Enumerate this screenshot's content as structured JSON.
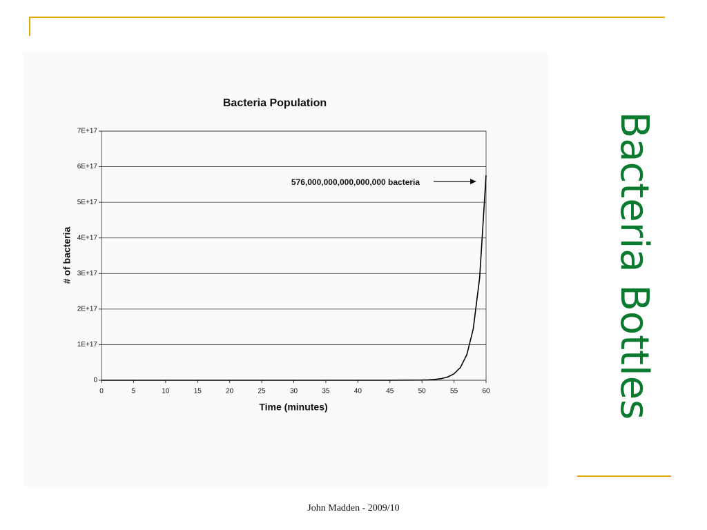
{
  "slide_title": "Bacteria Bottles",
  "footer": "John Madden - 2009/10",
  "chart_data": {
    "type": "line",
    "title": "Bacteria Population",
    "x_label": "Time (minutes)",
    "y_label": "# of bacteria",
    "annotation": "576,000,000,000,000,000 bacteria",
    "color": "#000000",
    "grid": true,
    "x": [
      0,
      5,
      10,
      15,
      20,
      25,
      30,
      35,
      40,
      45,
      50,
      51,
      52,
      53,
      54,
      55,
      56,
      57,
      58,
      59,
      60
    ],
    "values": [
      0,
      0,
      0,
      0,
      0,
      0,
      0,
      0,
      0,
      0,
      562500000000000,
      1125000000000000,
      2250000000000000,
      4500000000000000,
      9000000000000000,
      18000000000000000,
      36000000000000000,
      72000000000000000,
      144000000000000000,
      288000000000000000,
      576000000000000000
    ],
    "xlim": [
      0,
      60
    ],
    "xticks": [
      0,
      5,
      10,
      15,
      20,
      25,
      30,
      35,
      40,
      45,
      50,
      55,
      60
    ],
    "ylim": [
      0,
      700000000000000000
    ],
    "yticks": [
      0,
      {
        "value": 100000000000000000,
        "label": "1E+17"
      },
      {
        "value": 200000000000000000,
        "label": "2E+17"
      },
      {
        "value": 300000000000000000,
        "label": "3E+17"
      },
      {
        "value": 400000000000000000,
        "label": "4E+17"
      },
      {
        "value": 500000000000000000,
        "label": "5E+17"
      },
      {
        "value": 600000000000000000,
        "label": "6E+17"
      },
      {
        "value": 700000000000000000,
        "label": "7E+17"
      }
    ]
  }
}
